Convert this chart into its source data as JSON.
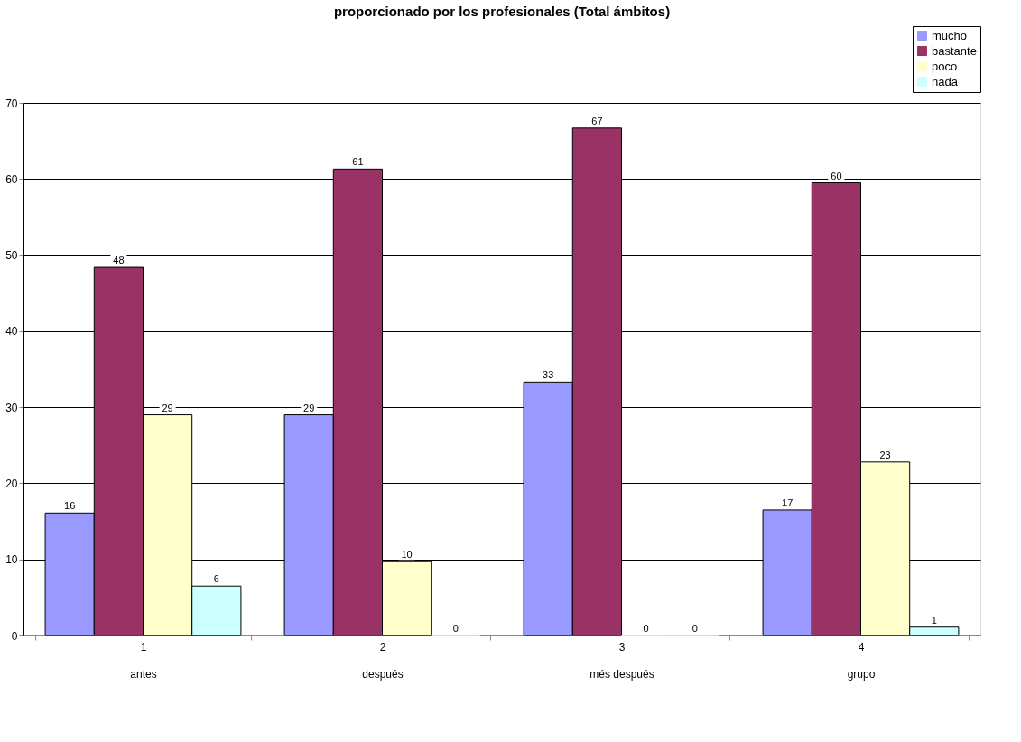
{
  "chart_data": {
    "type": "bar",
    "title": "proporcionado por los profesionales (Total ámbitos)",
    "categories": [
      "1",
      "2",
      "3",
      "4"
    ],
    "annotations": [
      "antes",
      "después",
      "més después",
      "grupo"
    ],
    "series": [
      {
        "name": "mucho",
        "color": "#9999ff",
        "values": [
          16.1,
          29,
          33.3,
          16.5
        ],
        "value_labels": [
          "16",
          "29",
          "33",
          "17"
        ]
      },
      {
        "name": "bastante",
        "color": "#993366",
        "values": [
          48.4,
          61.3,
          66.7,
          59.5
        ],
        "value_labels": [
          "48",
          "61",
          "67",
          "60"
        ]
      },
      {
        "name": "poco",
        "color": "#ffffcc",
        "values": [
          29,
          9.7,
          0,
          22.8
        ],
        "value_labels": [
          "29",
          "10",
          "0",
          "23"
        ]
      },
      {
        "name": "nada",
        "color": "#ccffff",
        "values": [
          6.5,
          0,
          0,
          1.1
        ],
        "value_labels": [
          "6",
          "0",
          "0",
          "1"
        ]
      }
    ],
    "ylim": [
      0,
      70
    ],
    "yticks": [
      0,
      10,
      20,
      30,
      40,
      50,
      60,
      70
    ],
    "grid": "y",
    "legend": "top right"
  }
}
